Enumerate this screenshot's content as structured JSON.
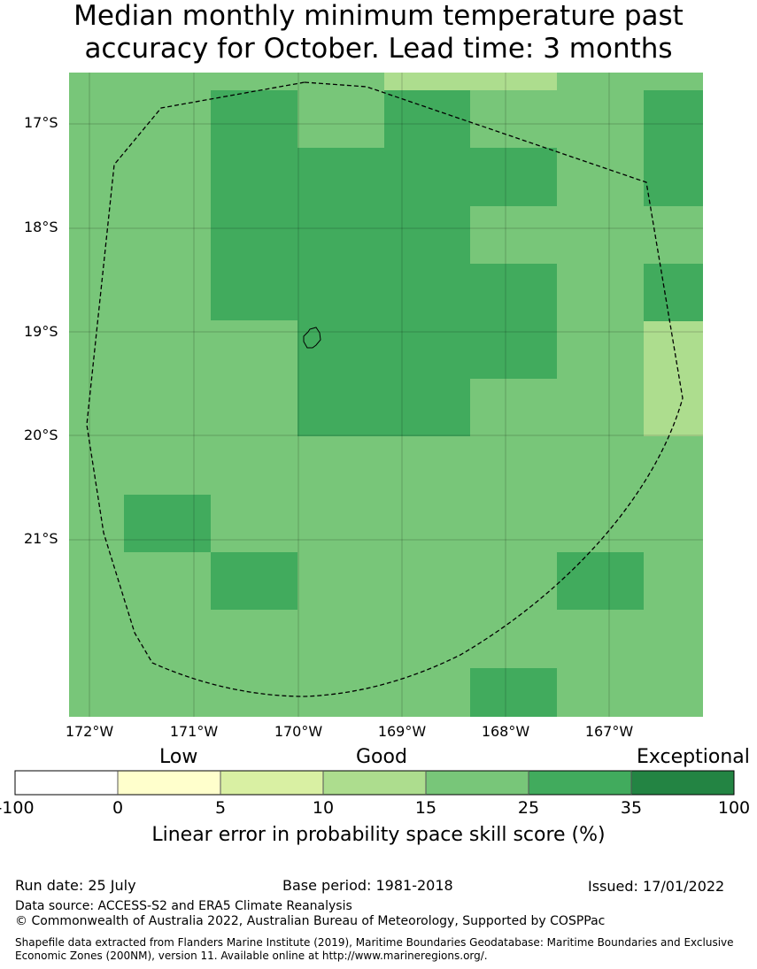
{
  "title_line1": "Median monthly minimum temperature past",
  "title_line2": "accuracy for October. Lead time: 3 months",
  "map": {
    "latitude_labels": [
      "17°S",
      "18°S",
      "19°S",
      "20°S",
      "21°S"
    ],
    "longitude_labels": [
      "172°W",
      "171°W",
      "170°W",
      "169°W",
      "168°W",
      "167°W"
    ],
    "cell_colors": [
      "#78c679",
      "#41ab5d",
      "#addd8e"
    ],
    "boundary_style": "dashed"
  },
  "colorbar": {
    "category_labels": [
      "Low",
      "Good",
      "Exceptional"
    ],
    "tick_labels": [
      "-100",
      "0",
      "5",
      "10",
      "15",
      "25",
      "35",
      "100"
    ],
    "colors": [
      "#ffffff",
      "#ffffcc",
      "#d9f0a3",
      "#addd8e",
      "#78c679",
      "#41ab5d",
      "#238443"
    ],
    "title": "Linear error in probability space skill score (%)"
  },
  "footer": {
    "run_date": "Run date: 25 July",
    "base_period": "Base period: 1981-2018",
    "issued": "Issued: 17/01/2022",
    "data_source": "Data source: ACCESS-S2 and ERA5 Climate Reanalysis",
    "copyright": "© Commonwealth of Australia 2022, Australian Bureau of Meteorology, Supported by COSPPac",
    "shapefile_note": "Shapefile data extracted from Flanders Marine Institute (2019), Maritime Boundaries Geodatabase: Maritime Boundaries and Exclusive Economic Zones (200NM), version 11. Available online at http://www.marineregions.org/."
  }
}
